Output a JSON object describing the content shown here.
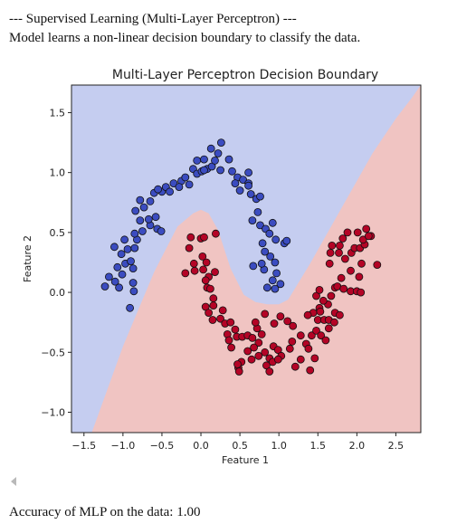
{
  "output": {
    "line1": "--- Supervised Learning (Multi-Layer Perceptron) ---",
    "line2": "Model learns a non-linear decision boundary to classify the data.",
    "accuracy_line": "Accuracy of MLP on the data: 1.00"
  },
  "colors": {
    "class0_region": "#c5cdf0",
    "class1_region": "#f0c4c2",
    "class0_point": "#3b4cc0",
    "class1_point": "#b40426",
    "point_edge": "#111111"
  },
  "chart_data": {
    "type": "scatter",
    "title": "Multi-Layer Perceptron Decision Boundary",
    "xlabel": "Feature 1",
    "ylabel": "Feature 2",
    "xlim": [
      -1.66,
      2.82
    ],
    "ylim": [
      -1.17,
      1.73
    ],
    "xticks": [
      "−1.5",
      "−1.0",
      "−0.5",
      "0.0",
      "0.5",
      "1.0",
      "1.5",
      "2.0",
      "2.5"
    ],
    "xtick_values": [
      -1.5,
      -1.0,
      -0.5,
      0.0,
      0.5,
      1.0,
      1.5,
      2.0,
      2.5
    ],
    "yticks": [
      "−1.0",
      "−0.5",
      "0.0",
      "0.5",
      "1.0",
      "1.5"
    ],
    "ytick_values": [
      -1.0,
      -0.5,
      0.0,
      0.5,
      1.0,
      1.5
    ],
    "grid": false,
    "decision_boundary": {
      "x": [
        -1.4,
        -1.0,
        -0.6,
        -0.3,
        -0.1,
        0.0,
        0.1,
        0.22,
        0.38,
        0.55,
        0.7,
        0.85,
        1.0,
        1.12,
        1.4,
        1.8,
        2.2,
        2.5,
        2.7,
        2.82
      ],
      "y": [
        -1.17,
        -0.45,
        0.17,
        0.55,
        0.66,
        0.69,
        0.66,
        0.52,
        0.2,
        -0.02,
        -0.08,
        -0.1,
        -0.1,
        -0.06,
        0.24,
        0.7,
        1.16,
        1.45,
        1.62,
        1.73
      ]
    },
    "series": [
      {
        "label": "0",
        "points": [
          [
            -1.23,
            0.05
          ],
          [
            -1.1,
            0.09
          ],
          [
            -1.05,
            0.04
          ],
          [
            -1.07,
            0.21
          ],
          [
            -0.97,
            0.24
          ],
          [
            -0.86,
            0.01
          ],
          [
            -1.02,
            0.32
          ],
          [
            -0.94,
            0.36
          ],
          [
            -0.85,
            0.37
          ],
          [
            -1.11,
            0.38
          ],
          [
            -0.98,
            0.44
          ],
          [
            -0.9,
            0.26
          ],
          [
            -0.87,
            0.2
          ],
          [
            -0.82,
            0.44
          ],
          [
            -0.85,
            0.49
          ],
          [
            -0.75,
            0.51
          ],
          [
            -0.65,
            0.56
          ],
          [
            -0.56,
            0.53
          ],
          [
            -0.51,
            0.51
          ],
          [
            -0.67,
            0.61
          ],
          [
            -0.58,
            0.63
          ],
          [
            -0.78,
            0.6
          ],
          [
            -0.84,
            0.68
          ],
          [
            -0.73,
            0.71
          ],
          [
            -0.65,
            0.76
          ],
          [
            -0.78,
            0.77
          ],
          [
            -0.6,
            0.83
          ],
          [
            -0.5,
            0.84
          ],
          [
            -0.55,
            0.86
          ],
          [
            -0.45,
            0.88
          ],
          [
            -0.35,
            0.91
          ],
          [
            -0.4,
            0.84
          ],
          [
            -0.25,
            0.93
          ],
          [
            -0.28,
            0.88
          ],
          [
            -0.15,
            0.9
          ],
          [
            -0.2,
            0.96
          ],
          [
            -0.1,
            1.03
          ],
          [
            -0.05,
            0.99
          ],
          [
            0.01,
            1.01
          ],
          [
            0.08,
            1.03
          ],
          [
            -0.05,
            1.1
          ],
          [
            0.04,
            1.11
          ],
          [
            0.14,
            1.05
          ],
          [
            0.18,
            1.1
          ],
          [
            0.25,
            1.02
          ],
          [
            0.22,
            1.16
          ],
          [
            0.13,
            1.2
          ],
          [
            0.26,
            1.25
          ],
          [
            0.36,
            1.11
          ],
          [
            0.4,
            1.01
          ],
          [
            0.47,
            0.96
          ],
          [
            0.54,
            0.94
          ],
          [
            0.61,
            0.91
          ],
          [
            0.61,
            1.0
          ],
          [
            0.44,
            0.91
          ],
          [
            0.5,
            0.85
          ],
          [
            0.64,
            0.82
          ],
          [
            0.71,
            0.78
          ],
          [
            0.76,
            0.8
          ],
          [
            0.73,
            0.67
          ],
          [
            0.66,
            0.6
          ],
          [
            0.76,
            0.56
          ],
          [
            0.83,
            0.53
          ],
          [
            0.92,
            0.58
          ],
          [
            0.88,
            0.49
          ],
          [
            0.96,
            0.44
          ],
          [
            0.79,
            0.41
          ],
          [
            0.82,
            0.34
          ],
          [
            0.89,
            0.3
          ],
          [
            0.95,
            0.25
          ],
          [
            0.97,
            0.16
          ],
          [
            0.92,
            0.1
          ],
          [
            1.02,
            0.07
          ],
          [
            0.95,
            0.03
          ],
          [
            0.85,
            0.04
          ],
          [
            0.81,
            0.19
          ],
          [
            0.67,
            0.22
          ],
          [
            0.78,
            0.24
          ],
          [
            1.07,
            0.41
          ],
          [
            1.1,
            0.43
          ],
          [
            0.61,
            0.89
          ],
          [
            0.04,
            1.02
          ],
          [
            -0.87,
            0.08
          ],
          [
            -0.91,
            -0.13
          ],
          [
            -1.01,
            0.15
          ],
          [
            -1.18,
            0.13
          ]
        ]
      },
      {
        "label": "1",
        "points": [
          [
            -0.13,
            0.46
          ],
          [
            0.0,
            0.45
          ],
          [
            0.04,
            0.46
          ],
          [
            0.19,
            0.49
          ],
          [
            -0.15,
            0.37
          ],
          [
            0.02,
            0.3
          ],
          [
            0.07,
            0.25
          ],
          [
            0.03,
            0.19
          ],
          [
            0.1,
            0.13
          ],
          [
            0.18,
            0.17
          ],
          [
            0.06,
            0.1
          ],
          [
            -0.08,
            0.18
          ],
          [
            -0.2,
            0.16
          ],
          [
            -0.09,
            0.24
          ],
          [
            0.08,
            0.04
          ],
          [
            0.12,
            0.03
          ],
          [
            0.16,
            -0.05
          ],
          [
            0.06,
            -0.12
          ],
          [
            0.16,
            -0.11
          ],
          [
            0.28,
            -0.15
          ],
          [
            0.1,
            -0.17
          ],
          [
            0.15,
            -0.23
          ],
          [
            0.25,
            -0.22
          ],
          [
            0.31,
            -0.26
          ],
          [
            0.38,
            -0.25
          ],
          [
            0.44,
            -0.31
          ],
          [
            0.34,
            -0.35
          ],
          [
            0.36,
            -0.4
          ],
          [
            0.39,
            -0.46
          ],
          [
            0.46,
            -0.37
          ],
          [
            0.53,
            -0.37
          ],
          [
            0.6,
            -0.36
          ],
          [
            0.66,
            -0.38
          ],
          [
            0.72,
            -0.3
          ],
          [
            0.78,
            -0.35
          ],
          [
            0.74,
            -0.42
          ],
          [
            0.68,
            -0.46
          ],
          [
            0.6,
            -0.49
          ],
          [
            0.65,
            -0.56
          ],
          [
            0.74,
            -0.53
          ],
          [
            0.82,
            -0.5
          ],
          [
            0.88,
            -0.55
          ],
          [
            0.93,
            -0.45
          ],
          [
            0.99,
            -0.48
          ],
          [
            1.03,
            -0.53
          ],
          [
            0.92,
            -0.58
          ],
          [
            0.84,
            -0.61
          ],
          [
            0.52,
            -0.58
          ],
          [
            0.48,
            -0.63
          ],
          [
            0.49,
            -0.66
          ],
          [
            0.47,
            -0.6
          ],
          [
            0.7,
            -0.25
          ],
          [
            0.82,
            -0.18
          ],
          [
            0.94,
            -0.26
          ],
          [
            1.02,
            -0.2
          ],
          [
            1.11,
            -0.24
          ],
          [
            1.18,
            -0.28
          ],
          [
            1.17,
            -0.41
          ],
          [
            1.28,
            -0.36
          ],
          [
            1.35,
            -0.43
          ],
          [
            1.38,
            -0.47
          ],
          [
            1.42,
            -0.36
          ],
          [
            1.48,
            -0.32
          ],
          [
            1.54,
            -0.36
          ],
          [
            1.6,
            -0.4
          ],
          [
            1.64,
            -0.3
          ],
          [
            1.5,
            -0.23
          ],
          [
            1.58,
            -0.23
          ],
          [
            1.64,
            -0.23
          ],
          [
            1.72,
            -0.17
          ],
          [
            1.78,
            -0.19
          ],
          [
            1.71,
            -0.25
          ],
          [
            1.63,
            -0.1
          ],
          [
            1.67,
            -0.03
          ],
          [
            1.72,
            0.04
          ],
          [
            1.75,
            0.05
          ],
          [
            1.83,
            0.03
          ],
          [
            1.92,
            0.01
          ],
          [
            2.0,
            0.01
          ],
          [
            2.05,
            0.0
          ],
          [
            1.8,
            0.12
          ],
          [
            2.03,
            0.13
          ],
          [
            1.92,
            0.18
          ],
          [
            2.06,
            0.24
          ],
          [
            1.85,
            0.28
          ],
          [
            1.77,
            0.33
          ],
          [
            1.93,
            0.33
          ],
          [
            1.97,
            0.37
          ],
          [
            2.04,
            0.37
          ],
          [
            2.1,
            0.4
          ],
          [
            2.08,
            0.44
          ],
          [
            2.18,
            0.47
          ],
          [
            2.01,
            0.5
          ],
          [
            1.88,
            0.5
          ],
          [
            2.12,
            0.53
          ],
          [
            1.82,
            0.45
          ],
          [
            1.78,
            0.39
          ],
          [
            1.68,
            0.39
          ],
          [
            1.66,
            0.33
          ],
          [
            1.65,
            0.24
          ],
          [
            2.26,
            0.23
          ],
          [
            2.15,
            0.47
          ],
          [
            1.57,
            -0.07
          ],
          [
            1.52,
            -0.13
          ],
          [
            1.44,
            -0.17
          ],
          [
            1.37,
            -0.19
          ],
          [
            1.48,
            -0.03
          ],
          [
            1.52,
            0.02
          ],
          [
            1.53,
            -0.16
          ],
          [
            1.46,
            -0.55
          ],
          [
            1.4,
            -0.65
          ],
          [
            1.28,
            -0.56
          ],
          [
            1.14,
            -0.47
          ],
          [
            1.21,
            -0.62
          ],
          [
            0.99,
            -0.56
          ],
          [
            0.88,
            -0.66
          ]
        ]
      }
    ]
  }
}
